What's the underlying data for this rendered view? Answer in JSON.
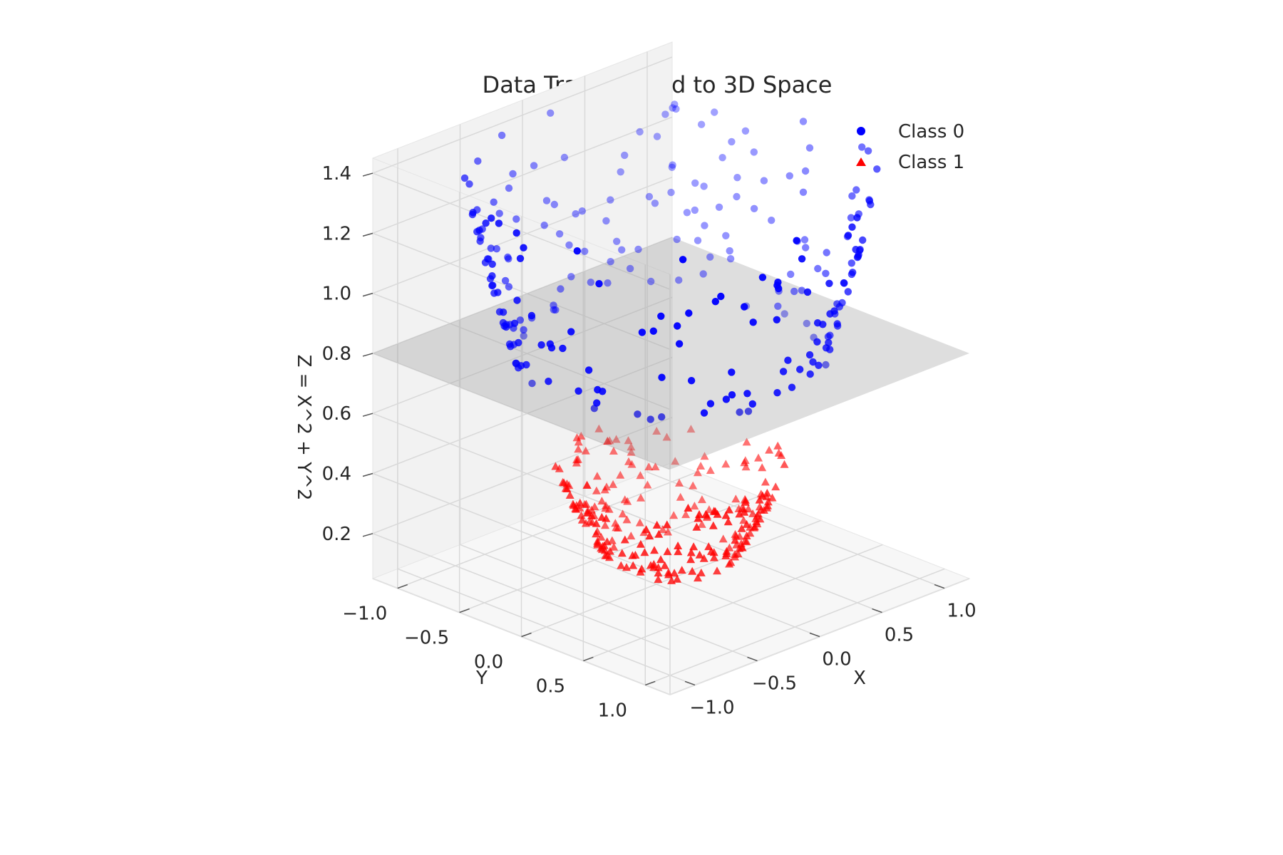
{
  "chart_data": {
    "type": "scatter",
    "title": "Data Transformed to 3D Space",
    "xlabel": "X",
    "ylabel": "Y",
    "zlabel": "Z = X^2 + Y^2",
    "xlim": [
      -1.2,
      1.2
    ],
    "ylim": [
      -1.2,
      1.2
    ],
    "zlim": [
      0.05,
      1.45
    ],
    "x_ticks": [
      "−1.0",
      "−0.5",
      "0.0",
      "0.5",
      "1.0"
    ],
    "y_ticks": [
      "−1.0",
      "−0.5",
      "0.0",
      "0.5",
      "1.0"
    ],
    "z_ticks": [
      "0.2",
      "0.4",
      "0.6",
      "0.8",
      "1.0",
      "1.2",
      "1.4"
    ],
    "x_tick_values": [
      -1.0,
      -0.5,
      0.0,
      0.5,
      1.0
    ],
    "y_tick_values": [
      -1.0,
      -0.5,
      0.0,
      0.5,
      1.0
    ],
    "z_tick_values": [
      0.2,
      0.4,
      0.6,
      0.8,
      1.0,
      1.2,
      1.4
    ],
    "separating_plane_z": 0.8,
    "grid": true,
    "legend_position": "top-right",
    "series": [
      {
        "name": "Class 0",
        "marker": "circle",
        "color": "#0000ff",
        "distribution": "ring, radius 0.9 to 1.18 with noise",
        "radius_range": [
          0.88,
          1.18
        ],
        "count": 250
      },
      {
        "name": "Class 1",
        "marker": "triangle",
        "color": "#ff0000",
        "distribution": "ring, radius 0.35 to 0.65 with noise",
        "radius_range": [
          0.35,
          0.66
        ],
        "count": 250
      }
    ]
  }
}
